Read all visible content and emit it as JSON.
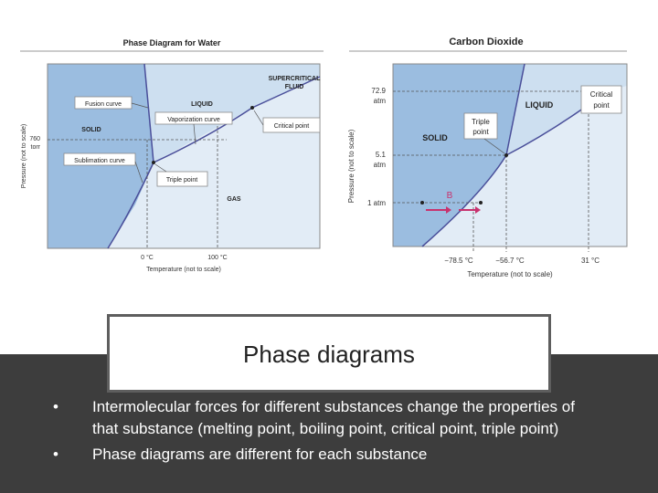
{
  "water": {
    "title": "Phase Diagram for Water",
    "ylabel": "Pressure (not to scale)",
    "xlabel": "Temperature (not to scale)",
    "p760_line1": "760",
    "p760_line2": "torr",
    "t0": "0 °C",
    "t100": "100 °C",
    "supercritical_line1": "SUPERCRITICAL",
    "supercritical_line2": "FLUID",
    "liquid": "LIQUID",
    "solid": "SOLID",
    "gas": "GAS",
    "fusion_curve": "Fusion curve",
    "vaporization_curve": "Vaporization curve",
    "critical_point": "Critical point",
    "sublimation_curve": "Sublimation curve",
    "triple_point": "Triple point",
    "colors": {
      "solid": "#9bbde0",
      "liquid": "#cddff0",
      "gas": "#e2ecf6",
      "curve": "#4a4f9a",
      "frame": "#9a9a9a"
    }
  },
  "co2": {
    "title": "Carbon Dioxide",
    "ylabel": "Pressure (not to scale)",
    "xlabel": "Temperature (not to scale)",
    "p729_line1": "72.9",
    "p729_line2": "atm",
    "p51_line1": "5.1",
    "p51_line2": "atm",
    "p1": "1 atm",
    "t785": "−78.5 °C",
    "t567": "−56.7 °C",
    "t31": "31 °C",
    "liquid": "LIQUID",
    "solid": "SOLID",
    "triple_line1": "Triple",
    "triple_line2": "point",
    "critical_line1": "Critical",
    "critical_line2": "point",
    "b_label": "B",
    "colors": {
      "solid": "#9bbde0",
      "liquid": "#cddff0",
      "gas": "#e2ecf6",
      "curve": "#4a4f9a",
      "arrow": "#c8326e"
    }
  },
  "slide": {
    "title": "Phase diagrams",
    "bullets": [
      {
        "marker": "•",
        "line1": "Intermolecular forces for different substances change the properties of",
        "line2": "that substance (melting point, boiling point, critical point, triple point)"
      },
      {
        "marker": "•",
        "line1": "Phase diagrams are different for each substance",
        "line2": ""
      }
    ],
    "colors": {
      "dark_band": "#3d3d3d",
      "title_border": "#5e5e5e"
    }
  }
}
